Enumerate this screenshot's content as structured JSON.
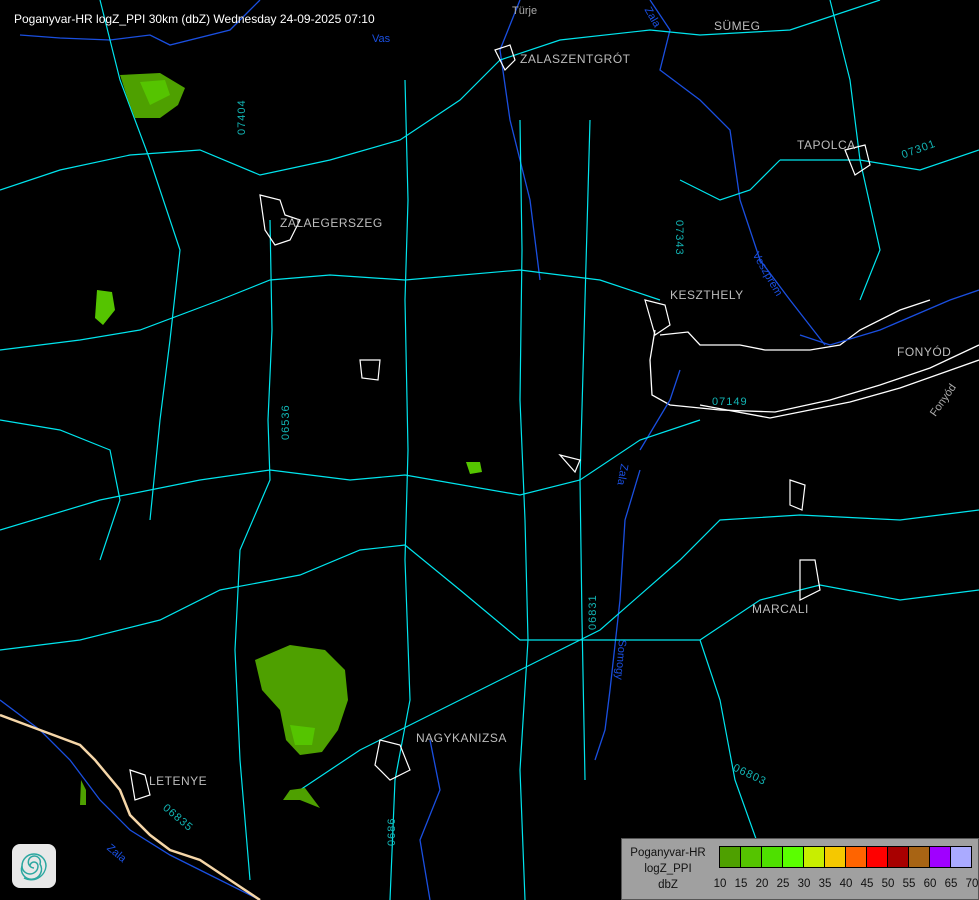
{
  "header": {
    "title": "Poganyvar-HR logZ_PPI 30km (dbZ) Wednesday 24-09-2025 07:10"
  },
  "towns": [
    {
      "name": "SÜMEG"
    },
    {
      "name": "ZALASZENTGRÓT"
    },
    {
      "name": "TAPOLCA"
    },
    {
      "name": "ZALAEGERSZEG"
    },
    {
      "name": "KESZTHELY"
    },
    {
      "name": "FONYÓD"
    },
    {
      "name": "MARCALI"
    },
    {
      "name": "NAGYKANIZSA"
    },
    {
      "name": "LETENYE"
    }
  ],
  "roads": [
    {
      "label": "07404"
    },
    {
      "label": "07343"
    },
    {
      "label": "06536"
    },
    {
      "label": "06831"
    },
    {
      "label": "06803"
    },
    {
      "label": "06835"
    },
    {
      "label": "0686"
    },
    {
      "label": "07149"
    },
    {
      "label": "07301"
    }
  ],
  "rivers": [
    {
      "label": "Vas"
    },
    {
      "label": "Türje"
    },
    {
      "label": "Zala"
    },
    {
      "label": "Veszprém"
    },
    {
      "label": "Fonyód"
    },
    {
      "label": "Somogy"
    },
    {
      "label": "Zala"
    },
    {
      "label": "Zala"
    }
  ],
  "legend": {
    "radar": "Poganyvar-HR",
    "product": "logZ_PPI",
    "unit": "dbZ",
    "ticks": [
      "10",
      "15",
      "20",
      "25",
      "30",
      "35",
      "40",
      "45",
      "50",
      "55",
      "60",
      "65",
      "70"
    ],
    "colors": [
      "#4ea000",
      "#55c400",
      "#4ee000",
      "#5aff00",
      "#c8ee00",
      "#f5c800",
      "#ff6400",
      "#ff0000",
      "#a80000",
      "#a86414",
      "#a000ff",
      "#aaaaff"
    ]
  },
  "echoes_color_dbz": [
    10,
    15,
    20
  ],
  "colors": {
    "background": "#000000",
    "roads": "#00e5ee",
    "settlements": "#ffffff",
    "rivers": "#1a4fe0",
    "border": "#f5d6a8"
  }
}
